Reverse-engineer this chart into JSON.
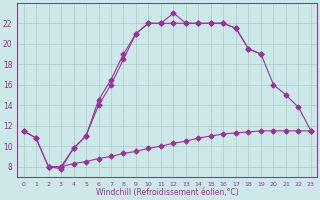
{
  "xlabel": "Windchill (Refroidissement éolien,°C)",
  "background_color": "#cde8e8",
  "line_color": "#993399",
  "xlim": [
    -0.5,
    23.5
  ],
  "ylim": [
    7.0,
    24.0
  ],
  "yticks": [
    8,
    10,
    12,
    14,
    16,
    18,
    20,
    22
  ],
  "xticks": [
    0,
    1,
    2,
    3,
    4,
    5,
    6,
    7,
    8,
    9,
    10,
    11,
    12,
    13,
    14,
    15,
    16,
    17,
    18,
    19,
    20,
    21,
    22,
    23
  ],
  "line1_x": [
    0,
    1,
    2,
    3,
    4,
    5,
    6,
    7,
    8,
    9,
    10,
    11,
    12,
    13,
    14,
    15,
    16,
    17,
    18,
    19
  ],
  "line1_y": [
    11.5,
    10.8,
    8.0,
    8.0,
    9.8,
    11.0,
    14.0,
    16.0,
    18.5,
    21.0,
    22.0,
    22.0,
    22.0,
    22.0,
    22.0,
    22.0,
    22.0,
    21.5,
    19.5,
    19.0
  ],
  "line2_x": [
    0,
    1,
    2,
    3,
    4,
    5,
    6,
    7,
    8,
    9,
    10,
    11,
    12,
    13,
    14,
    15,
    16,
    17,
    18,
    19,
    20,
    21,
    22,
    23
  ],
  "line2_y": [
    11.5,
    10.8,
    8.0,
    7.8,
    9.8,
    11.0,
    14.5,
    16.5,
    19.0,
    21.0,
    22.0,
    22.0,
    23.0,
    22.0,
    22.0,
    22.0,
    22.0,
    21.5,
    19.5,
    19.0,
    16.0,
    15.0,
    13.8,
    11.5
  ],
  "line3_x": [
    2,
    3,
    4,
    5,
    6,
    7,
    8,
    9,
    10,
    11,
    12,
    13,
    14,
    15,
    16,
    17,
    18,
    19,
    20,
    21,
    22,
    23
  ],
  "line3_y": [
    8.0,
    8.0,
    8.3,
    8.5,
    8.8,
    9.0,
    9.3,
    9.5,
    9.8,
    10.0,
    10.3,
    10.5,
    10.8,
    11.0,
    11.2,
    11.3,
    11.4,
    11.5,
    11.5,
    11.5,
    11.5,
    11.5
  ]
}
